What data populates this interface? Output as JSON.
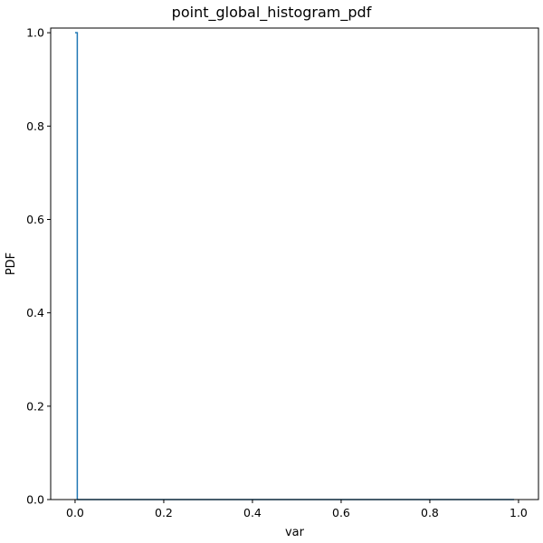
{
  "chart_data": {
    "type": "line",
    "title": "point_global_histogram_pdf",
    "xlabel": "var",
    "ylabel": "PDF",
    "xlim": [
      -0.055,
      1.045
    ],
    "ylim": [
      0.0,
      1.01
    ],
    "xticks": [
      0.0,
      0.2,
      0.4,
      0.6,
      0.8,
      1.0
    ],
    "xtick_labels": [
      "0.0",
      "0.2",
      "0.4",
      "0.6",
      "0.8",
      "1.0"
    ],
    "yticks": [
      0.0,
      0.2,
      0.4,
      0.6,
      0.8,
      1.0
    ],
    "ytick_labels": [
      "0.0",
      "0.2",
      "0.4",
      "0.6",
      "0.8",
      "1.0"
    ],
    "grid": false,
    "series": [
      {
        "color": "#1f77b4",
        "x": [
          0.0,
          0.005,
          0.005,
          0.99
        ],
        "y": [
          1.0,
          1.0,
          0.0,
          0.0
        ]
      }
    ]
  }
}
